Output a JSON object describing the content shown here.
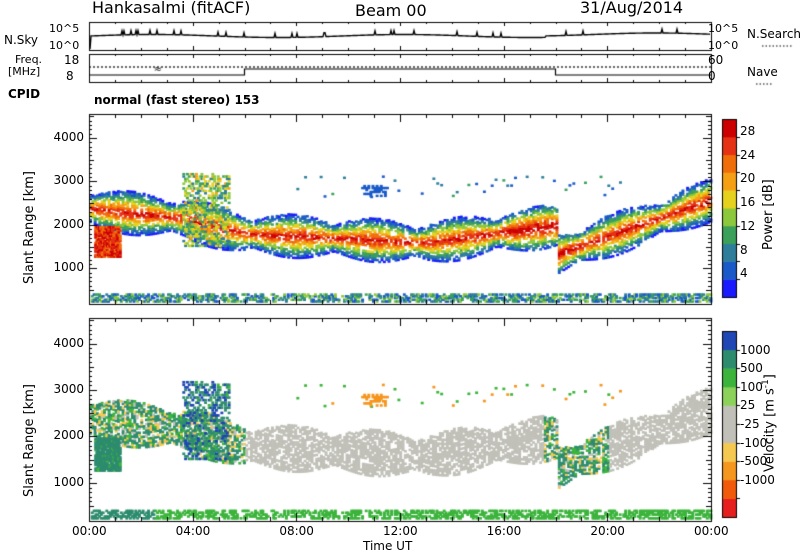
{
  "header": {
    "station": "Hankasalmi (fitACF)",
    "beam": "Beam 00",
    "date": "31/Aug/2014"
  },
  "top_panel": {
    "nsky_label": "N.Sky",
    "nsky_ticks": [
      "10^5",
      "10^0"
    ],
    "nsearch_label": "N.Search",
    "nsearch_ticks": [
      "10^5",
      "10^0"
    ],
    "freq_label": "Freq.",
    "freq_unit": "[MHz]",
    "freq_ticks": [
      "18",
      "8"
    ],
    "nave_label": "Nave",
    "nave_ticks": [
      "60",
      "0"
    ],
    "cpid_label": "CPID",
    "cpid_text": "normal (fast stereo) 153"
  },
  "chart_data": [
    {
      "type": "heatmap",
      "parameter": "Power",
      "ylabel": "Slant Range [km]",
      "ylim": [
        180,
        4550
      ],
      "yticks": [
        "1000",
        "2000",
        "3000",
        "4000"
      ],
      "xlabel": "",
      "xlim": [
        0,
        24
      ],
      "colorbar": {
        "label": "Power [dB]",
        "ticks": [
          "4",
          "8",
          "12",
          "16",
          "20",
          "24",
          "28"
        ],
        "range": [
          0,
          30
        ],
        "colors": [
          "#1a1aff",
          "#1a5ac8",
          "#2e7d9a",
          "#3aa05a",
          "#8cc83c",
          "#e6d21e",
          "#f5a014",
          "#f06e0a",
          "#e63214",
          "#cc0000"
        ]
      },
      "features": [
        {
          "band": "main echo",
          "start_hour": 0,
          "end_hour": 24,
          "range_start_km": 2400,
          "range_mid_km": 1600,
          "range_end_km": 2500,
          "peak_power_db": 28
        },
        {
          "band": "near range patch",
          "start_hour": 0.2,
          "end_hour": 1.2,
          "range_km": [
            1200,
            2000
          ],
          "peak_power_db": 30
        },
        {
          "band": "ground scatter",
          "start_hour": 0,
          "end_hour": 24,
          "range_km": [
            200,
            400
          ],
          "peak_power_db": 12
        }
      ]
    },
    {
      "type": "heatmap",
      "parameter": "Velocity",
      "ylabel": "Slant Range [km]",
      "ylim": [
        180,
        4550
      ],
      "yticks": [
        "1000",
        "2000",
        "3000",
        "4000"
      ],
      "xlabel": "Time UT",
      "xlim": [
        0,
        24
      ],
      "xticks": [
        "00:00",
        "04:00",
        "08:00",
        "12:00",
        "16:00",
        "20:00",
        "00:00"
      ],
      "colorbar": {
        "label": "Velocity [m s-1]",
        "label_main": "Velocity",
        "label_unit": "[m s",
        "label_exp": "-1",
        "label_close": "]",
        "ticks": [
          "1000",
          "500",
          "100",
          "25",
          "-25",
          "-100",
          "-500",
          "-1000"
        ],
        "range": [
          -1000,
          1000
        ],
        "colors": [
          "#e61e1e",
          "#f05a0a",
          "#f5961e",
          "#f5c850",
          "#c0c0b8",
          "#c0c0b8",
          "#8cd25a",
          "#3cb43c",
          "#2e8c6e",
          "#1e46b4"
        ]
      },
      "features": [
        {
          "band": "main echo",
          "start_hour": 0,
          "end_hour": 24,
          "dominant": "ground scatter (grey)"
        },
        {
          "band": "near range patch",
          "start_hour": 0.2,
          "end_hour": 1.2,
          "dominant": "positive (green/blue)"
        },
        {
          "band": "ground scatter",
          "start_hour": 0,
          "end_hour": 24,
          "range_km": [
            200,
            400
          ],
          "dominant": "green"
        }
      ]
    }
  ]
}
